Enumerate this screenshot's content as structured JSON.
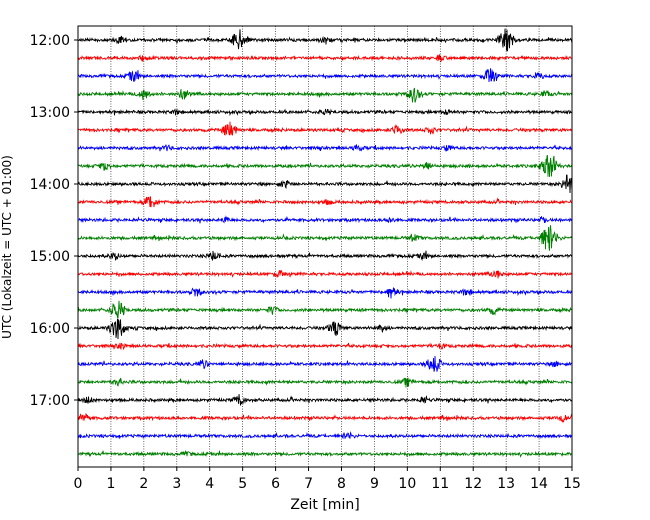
{
  "chart_data": {
    "type": "line",
    "title": "",
    "xlabel": "Zeit  [min]",
    "ylabel": "UTC (Lokalzeit = UTC + 01:00)",
    "xlim": [
      0,
      15
    ],
    "x_ticks": [
      "0",
      "1",
      "2",
      "3",
      "4",
      "5",
      "6",
      "7",
      "8",
      "9",
      "10",
      "11",
      "12",
      "13",
      "14",
      "15"
    ],
    "y_tick_labels": [
      "12:00",
      "13:00",
      "14:00",
      "15:00",
      "16:00",
      "17:00"
    ],
    "grid": {
      "x": "dotted vertical at each minute",
      "y": false
    },
    "legend": "none",
    "trace_colors": [
      "#000000",
      "#ff0000",
      "#0000ff",
      "#008000"
    ],
    "series": [
      {
        "start": "12:00",
        "events": [
          [
            1.3,
            0.35
          ],
          [
            4.9,
            0.9
          ],
          [
            7.5,
            0.3
          ],
          [
            13.0,
            1.0
          ]
        ]
      },
      {
        "start": "12:15",
        "events": [
          [
            2.0,
            0.2
          ],
          [
            11.0,
            0.2
          ]
        ]
      },
      {
        "start": "12:30",
        "events": [
          [
            1.7,
            0.45
          ],
          [
            12.5,
            0.7
          ],
          [
            14.0,
            0.25
          ]
        ]
      },
      {
        "start": "12:45",
        "events": [
          [
            2.0,
            0.45
          ],
          [
            3.2,
            0.45
          ],
          [
            10.2,
            0.7
          ],
          [
            14.2,
            0.25
          ]
        ]
      },
      {
        "start": "13:00",
        "events": [
          [
            3.0,
            0.2
          ],
          [
            7.5,
            0.2
          ],
          [
            11.2,
            0.2
          ]
        ]
      },
      {
        "start": "13:15",
        "events": [
          [
            4.6,
            0.75
          ],
          [
            9.7,
            0.4
          ],
          [
            10.7,
            0.3
          ]
        ]
      },
      {
        "start": "13:30",
        "events": [
          [
            2.7,
            0.2
          ],
          [
            8.5,
            0.25
          ],
          [
            11.2,
            0.2
          ]
        ]
      },
      {
        "start": "13:45",
        "events": [
          [
            0.8,
            0.35
          ],
          [
            10.6,
            0.3
          ],
          [
            14.3,
            1.1
          ]
        ]
      },
      {
        "start": "14:00",
        "events": [
          [
            6.3,
            0.3
          ],
          [
            14.9,
            0.85
          ]
        ]
      },
      {
        "start": "14:15",
        "events": [
          [
            2.2,
            0.6
          ],
          [
            7.6,
            0.2
          ]
        ]
      },
      {
        "start": "14:30",
        "events": [
          [
            4.5,
            0.2
          ],
          [
            9.5,
            0.2
          ],
          [
            14.1,
            0.2
          ]
        ]
      },
      {
        "start": "14:45",
        "events": [
          [
            14.3,
            1.2
          ],
          [
            10.2,
            0.25
          ]
        ]
      },
      {
        "start": "15:00",
        "events": [
          [
            1.1,
            0.3
          ],
          [
            4.1,
            0.35
          ],
          [
            10.5,
            0.25
          ]
        ]
      },
      {
        "start": "15:15",
        "events": [
          [
            6.1,
            0.3
          ],
          [
            12.7,
            0.35
          ]
        ]
      },
      {
        "start": "15:30",
        "events": [
          [
            3.6,
            0.35
          ],
          [
            9.5,
            0.55
          ],
          [
            11.8,
            0.3
          ]
        ]
      },
      {
        "start": "15:45",
        "events": [
          [
            1.2,
            0.85
          ],
          [
            5.9,
            0.3
          ],
          [
            12.6,
            0.3
          ]
        ]
      },
      {
        "start": "16:00",
        "events": [
          [
            1.2,
            1.0
          ],
          [
            7.8,
            0.65
          ],
          [
            9.2,
            0.3
          ]
        ]
      },
      {
        "start": "16:15",
        "events": [
          [
            1.3,
            0.2
          ],
          [
            11.0,
            0.2
          ]
        ]
      },
      {
        "start": "16:30",
        "events": [
          [
            3.8,
            0.3
          ],
          [
            10.8,
            0.8
          ],
          [
            14.5,
            0.2
          ]
        ]
      },
      {
        "start": "16:45",
        "events": [
          [
            1.2,
            0.3
          ],
          [
            10.0,
            0.3
          ]
        ]
      },
      {
        "start": "17:00",
        "events": [
          [
            0.3,
            0.25
          ],
          [
            4.9,
            0.45
          ],
          [
            10.5,
            0.25
          ]
        ]
      },
      {
        "start": "17:15",
        "events": [
          [
            0.2,
            0.3
          ],
          [
            14.7,
            0.25
          ]
        ]
      },
      {
        "start": "17:30",
        "events": [
          [
            8.2,
            0.3
          ]
        ]
      },
      {
        "start": "17:45",
        "events": [
          [
            3.3,
            0.15
          ]
        ]
      }
    ]
  }
}
